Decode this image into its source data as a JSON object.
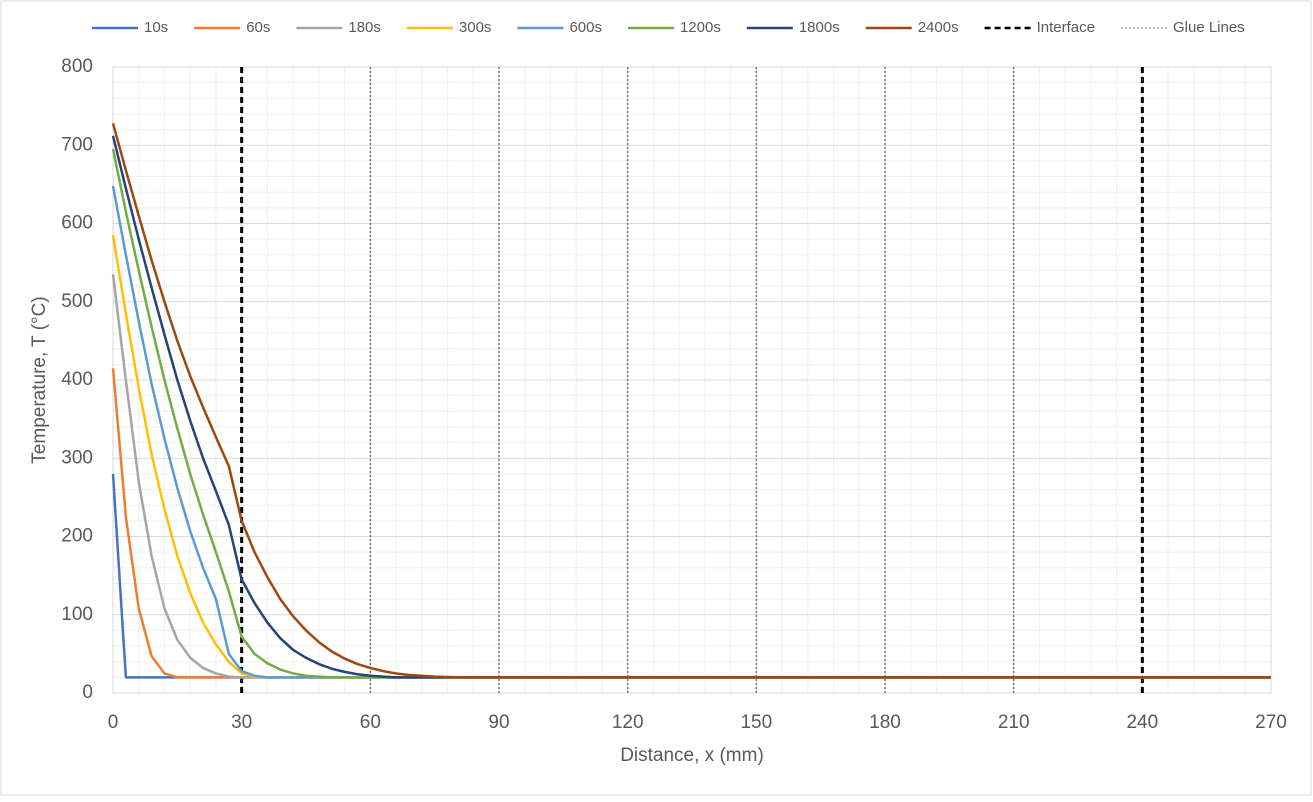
{
  "chart_data": {
    "type": "line",
    "x_label": "Distance, x (mm)",
    "y_label": "Temperature, T (°C)",
    "xlim": [
      0,
      270
    ],
    "ylim": [
      0,
      800
    ],
    "xticks": [
      0,
      30,
      60,
      90,
      120,
      150,
      180,
      210,
      240,
      270
    ],
    "yticks": [
      0,
      100,
      200,
      300,
      400,
      500,
      600,
      700,
      800
    ],
    "grid": true,
    "legend": "top",
    "x": [
      0,
      3,
      6,
      9,
      12,
      15,
      18,
      21,
      24,
      27,
      30,
      33,
      36,
      39,
      42,
      45,
      48,
      51,
      54,
      57,
      60,
      63,
      66,
      69,
      72,
      75,
      78,
      81,
      84,
      87,
      90,
      270
    ],
    "series": [
      {
        "name": "10s",
        "color": "#4472c4",
        "values": [
          280,
          20,
          20,
          20,
          20,
          20,
          20,
          20,
          20,
          20,
          20,
          20,
          20,
          20,
          20,
          20,
          20,
          20,
          20,
          20,
          20,
          20,
          20,
          20,
          20,
          20,
          20,
          20,
          20,
          20,
          20,
          20
        ]
      },
      {
        "name": "60s",
        "color": "#ed7d31",
        "values": [
          415,
          225,
          108,
          47,
          25,
          20,
          20,
          20,
          20,
          20,
          20,
          20,
          20,
          20,
          20,
          20,
          20,
          20,
          20,
          20,
          20,
          20,
          20,
          20,
          20,
          20,
          20,
          20,
          20,
          20,
          20,
          20
        ]
      },
      {
        "name": "180s",
        "color": "#a5a5a5",
        "values": [
          535,
          400,
          270,
          175,
          108,
          68,
          45,
          32,
          25,
          21,
          20,
          20,
          20,
          20,
          20,
          20,
          20,
          20,
          20,
          20,
          20,
          20,
          20,
          20,
          20,
          20,
          20,
          20,
          20,
          20,
          20,
          20
        ]
      },
      {
        "name": "300s",
        "color": "#ffc000",
        "values": [
          585,
          485,
          390,
          305,
          235,
          175,
          128,
          90,
          62,
          40,
          25,
          21,
          20,
          20,
          20,
          20,
          20,
          20,
          20,
          20,
          20,
          20,
          20,
          20,
          20,
          20,
          20,
          20,
          20,
          20,
          20,
          20
        ]
      },
      {
        "name": "600s",
        "color": "#5b9bd5",
        "values": [
          648,
          560,
          475,
          395,
          325,
          262,
          207,
          160,
          120,
          50,
          28,
          22,
          20,
          20,
          20,
          20,
          20,
          20,
          20,
          20,
          20,
          20,
          20,
          20,
          20,
          20,
          20,
          20,
          20,
          20,
          20,
          20
        ]
      },
      {
        "name": "1200s",
        "color": "#70ad47",
        "values": [
          695,
          615,
          540,
          468,
          400,
          338,
          280,
          228,
          180,
          130,
          72,
          50,
          38,
          30,
          25,
          22,
          21,
          20,
          20,
          20,
          20,
          20,
          20,
          20,
          20,
          20,
          20,
          20,
          20,
          20,
          20,
          20
        ]
      },
      {
        "name": "1800s",
        "color": "#264478",
        "values": [
          712,
          645,
          580,
          518,
          458,
          400,
          348,
          300,
          258,
          215,
          145,
          115,
          90,
          70,
          55,
          45,
          37,
          31,
          27,
          24,
          22,
          21,
          20,
          20,
          20,
          20,
          20,
          20,
          20,
          20,
          20,
          20
        ]
      },
      {
        "name": "2400s",
        "color": "#9e480e",
        "values": [
          728,
          668,
          610,
          553,
          500,
          450,
          405,
          365,
          327,
          290,
          220,
          180,
          148,
          120,
          98,
          80,
          65,
          53,
          44,
          37,
          32,
          28,
          25,
          23,
          22,
          21,
          20.5,
          20,
          20,
          20,
          20,
          20
        ]
      }
    ],
    "reference_lines": [
      {
        "name": "Interface",
        "color": "#000000",
        "style": "dashed",
        "x": [
          30,
          240
        ]
      },
      {
        "name": "Glue Lines",
        "color": "#777777",
        "style": "dotted",
        "x": [
          60,
          90,
          120,
          150,
          180,
          210
        ]
      }
    ]
  }
}
